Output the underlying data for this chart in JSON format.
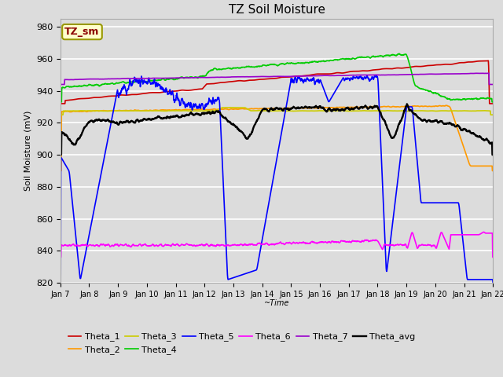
{
  "title": "TZ Soil Moisture",
  "xlabel": "~Time",
  "ylabel": "Soil Moisture (mV)",
  "ylim": [
    820,
    985
  ],
  "xlim": [
    0,
    15
  ],
  "background_color": "#dcdcdc",
  "plot_bg_color": "#dcdcdc",
  "legend_label": "TZ_sm",
  "legend_bg": "#ffffcc",
  "legend_border": "#999900",
  "xtick_labels": [
    "Jan 7",
    "Jan 8",
    "Jan 9",
    "Jan 10",
    "Jan 11",
    "Jan 12",
    "Jan 13",
    "Jan 14",
    "Jan 15",
    "Jan 16",
    "Jan 17",
    "Jan 18",
    "Jan 19",
    "Jan 20",
    "Jan 21",
    "Jan 22"
  ],
  "ytick_vals": [
    820,
    840,
    860,
    880,
    900,
    920,
    940,
    960,
    980
  ],
  "line_colors": {
    "Theta_1": "#cc0000",
    "Theta_2": "#ff9900",
    "Theta_3": "#cccc00",
    "Theta_4": "#00cc00",
    "Theta_5": "#0000ff",
    "Theta_6": "#ff00ff",
    "Theta_7": "#9900cc",
    "Theta_avg": "#000000"
  },
  "line_width": 1.2
}
